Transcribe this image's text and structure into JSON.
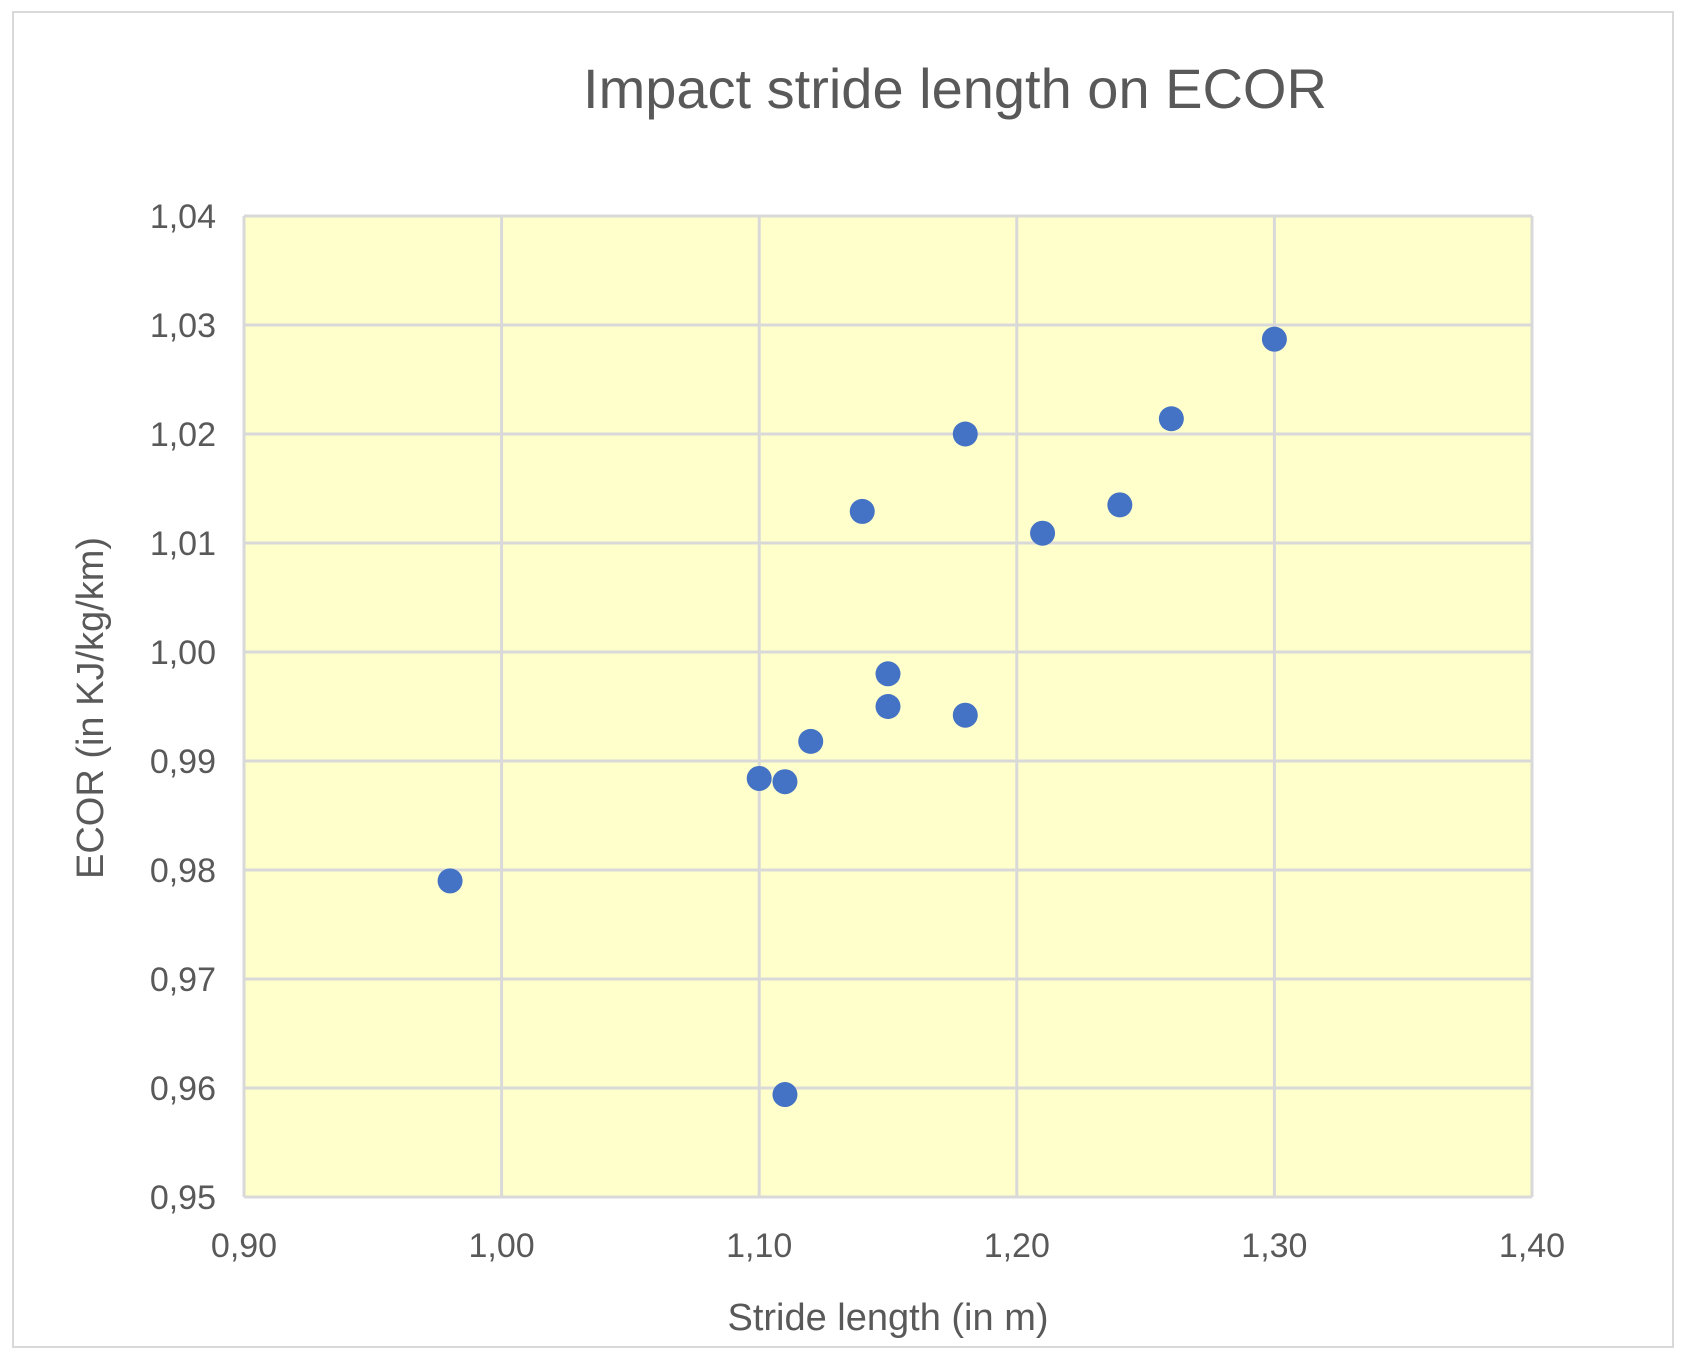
{
  "chart_data": {
    "type": "scatter",
    "title": "Impact stride length on ECOR",
    "xlabel": "Stride length (in m)",
    "ylabel": "ECOR (in KJ/kg/km)",
    "xlim": [
      0.9,
      1.4
    ],
    "ylim": [
      0.95,
      1.04
    ],
    "x_ticks": [
      "0,90",
      "1,00",
      "1,10",
      "1,20",
      "1,30",
      "1,40"
    ],
    "y_ticks": [
      "0,95",
      "0,96",
      "0,97",
      "0,98",
      "0,99",
      "1,00",
      "1,01",
      "1,02",
      "1,03",
      "1,04"
    ],
    "x_tick_values": [
      0.9,
      1.0,
      1.1,
      1.2,
      1.3,
      1.4
    ],
    "y_tick_values": [
      0.95,
      0.96,
      0.97,
      0.98,
      0.99,
      1.0,
      1.01,
      1.02,
      1.03,
      1.04
    ],
    "grid": true,
    "series": [
      {
        "points": [
          {
            "x": 0.98,
            "y": 0.979
          },
          {
            "x": 1.1,
            "y": 0.9884
          },
          {
            "x": 1.11,
            "y": 0.9881
          },
          {
            "x": 1.11,
            "y": 0.9594
          },
          {
            "x": 1.12,
            "y": 0.9918
          },
          {
            "x": 1.14,
            "y": 1.0129
          },
          {
            "x": 1.15,
            "y": 0.998
          },
          {
            "x": 1.15,
            "y": 0.995
          },
          {
            "x": 1.18,
            "y": 1.02
          },
          {
            "x": 1.18,
            "y": 0.9942
          },
          {
            "x": 1.21,
            "y": 1.0109
          },
          {
            "x": 1.24,
            "y": 1.0135
          },
          {
            "x": 1.26,
            "y": 1.0214
          },
          {
            "x": 1.3,
            "y": 1.0287
          }
        ]
      }
    ],
    "colors": {
      "plot_background": "#ffffcc",
      "marker": "#4472c4",
      "gridline": "#d9d9d9",
      "text": "#595959"
    }
  }
}
